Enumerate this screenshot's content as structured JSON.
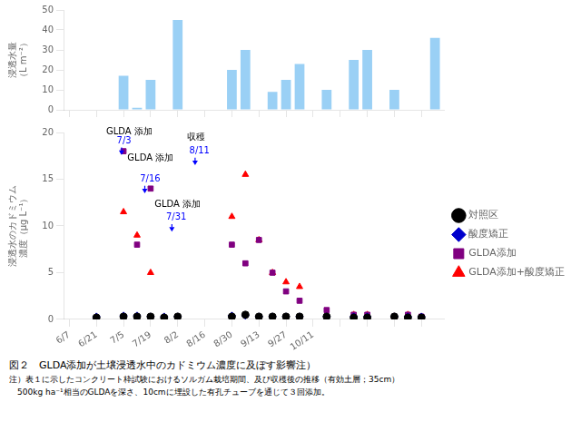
{
  "chart_data": [
    {
      "type": "bar",
      "x": [
        28,
        35,
        42,
        56,
        84,
        91,
        105,
        112,
        119,
        126,
        133,
        147,
        154,
        168,
        189
      ],
      "values": [
        17,
        1,
        15,
        45,
        20,
        30,
        9,
        15,
        23,
        0,
        10,
        25,
        30,
        10,
        36
      ],
      "xlim": [
        -3,
        194
      ],
      "xticks": [
        0,
        14,
        28,
        42,
        56,
        70,
        84,
        98,
        112,
        126,
        140,
        154,
        168,
        182
      ],
      "ylim": [
        0,
        50
      ],
      "yticks": [
        0,
        10,
        20,
        30,
        40,
        50
      ],
      "y_label": "浸透水量\n（L m⁻²）",
      "grid": false,
      "tick_labels": "y"
    },
    {
      "type": "scatter",
      "title": "図２　GLDA添加が土壌浸透水中のカドミウム濃度に及ぼす影響注）",
      "notes": [
        "注）表１に示したコンクリート枠試験におけるソルガム栽培期間、及び収穫後の推移（有効土層；35cm）",
        "　500kg ha⁻¹相当のGLDAを深さ、10cmに埋設した有孔チューブを通じて３回添加。"
      ],
      "y_label": "浸透水のカドミウム\n濃度（μg L⁻¹）",
      "xlim": [
        -3,
        194
      ],
      "xticks": [
        {
          "value": 0,
          "label": "6/7"
        },
        {
          "value": 14,
          "label": "6/21"
        },
        {
          "value": 28,
          "label": "7/5"
        },
        {
          "value": 42,
          "label": "7/19"
        },
        {
          "value": 56,
          "label": "8/2"
        },
        {
          "value": 70,
          "label": "8/16"
        },
        {
          "value": 84,
          "label": "8/30"
        },
        {
          "value": 98,
          "label": "9/13"
        },
        {
          "value": 112,
          "label": "9/27"
        },
        {
          "value": 126,
          "label": "10/11"
        },
        {
          "value": 140,
          "label": null
        },
        {
          "value": 154,
          "label": null
        },
        {
          "value": 168,
          "label": null
        },
        {
          "value": 182,
          "label": null
        }
      ],
      "ylim": [
        0,
        20
      ],
      "yticks": [
        0,
        5,
        10,
        15,
        20
      ],
      "grid": false,
      "legend": "right",
      "series": [
        {
          "name": "対照区",
          "color": "#000000",
          "marker": "circle",
          "x": [
            14,
            28,
            35,
            42,
            49,
            56,
            84,
            91,
            98,
            105,
            112,
            119,
            133,
            147,
            154,
            168,
            175,
            182
          ],
          "values": [
            0.2,
            0.3,
            0.3,
            0.3,
            0.2,
            0.3,
            0.3,
            0.5,
            0.3,
            0.3,
            0.3,
            0.3,
            0.3,
            0.2,
            0.2,
            0.3,
            0.2,
            0.2
          ]
        },
        {
          "name": "酸度矯正",
          "color": "#0000cc",
          "marker": "diamond",
          "x": [
            14,
            28,
            35,
            42,
            49,
            56,
            84,
            91,
            98,
            105,
            112,
            119,
            133,
            147,
            154,
            168,
            175,
            182
          ],
          "values": [
            0.3,
            0.4,
            0.4,
            0.3,
            0.3,
            0.3,
            0.4,
            0.4,
            0.3,
            0.3,
            0.3,
            0.3,
            0.3,
            0.3,
            0.3,
            0.3,
            0.3,
            0.3
          ]
        },
        {
          "name": "GLDA添加",
          "color": "#800080",
          "marker": "square",
          "x": [
            28,
            35,
            42,
            84,
            91,
            98,
            105,
            112,
            119,
            133,
            147,
            154,
            168,
            175,
            182
          ],
          "values": [
            18,
            8,
            14,
            8,
            6,
            8.5,
            5,
            3,
            2,
            1,
            0.5,
            0.5,
            0.3,
            0.5,
            0.3
          ]
        },
        {
          "name": "GLDA添加+酸度矯正",
          "color": "#ff0000",
          "marker": "triangle",
          "x": [
            28,
            35,
            42,
            84,
            91,
            98,
            105,
            112,
            119,
            147,
            154,
            168,
            175
          ],
          "values": [
            11.5,
            9,
            5,
            11,
            15.5,
            8.5,
            5,
            4,
            3.5,
            0.5,
            0.5,
            0.3,
            0.5
          ]
        }
      ],
      "annotations": [
        {
          "text": "GLDA 添加",
          "x": 19,
          "y": 19.6,
          "color": "#000000"
        },
        {
          "text": "7/3",
          "x": 24.5,
          "y": 18.6,
          "color": "#0000ff"
        },
        {
          "text": "GLDA 添加",
          "x": 30,
          "y": 16.8,
          "color": "#000000"
        },
        {
          "text": "7/16",
          "x": 36.5,
          "y": 14.5,
          "color": "#0000ff"
        },
        {
          "text": "GLDA 添加",
          "x": 44,
          "y": 11.8,
          "color": "#000000"
        },
        {
          "text": "7/31",
          "x": 50,
          "y": 10.4,
          "color": "#0000ff"
        },
        {
          "text": "収穫",
          "x": 61,
          "y": 19.0,
          "color": "#000000"
        },
        {
          "text": "8/11",
          "x": 62,
          "y": 17.5,
          "color": "#0000ff"
        }
      ],
      "arrows": [
        {
          "x": 27,
          "from": 18.4,
          "to": 17.6,
          "color": "#0000ff"
        },
        {
          "x": 39,
          "from": 14.3,
          "to": 13.5,
          "color": "#0000ff"
        },
        {
          "x": 53,
          "from": 10.2,
          "to": 9.4,
          "color": "#0000ff"
        },
        {
          "x": 65,
          "from": 17.3,
          "to": 16.5,
          "color": "#0000ff"
        }
      ]
    }
  ]
}
